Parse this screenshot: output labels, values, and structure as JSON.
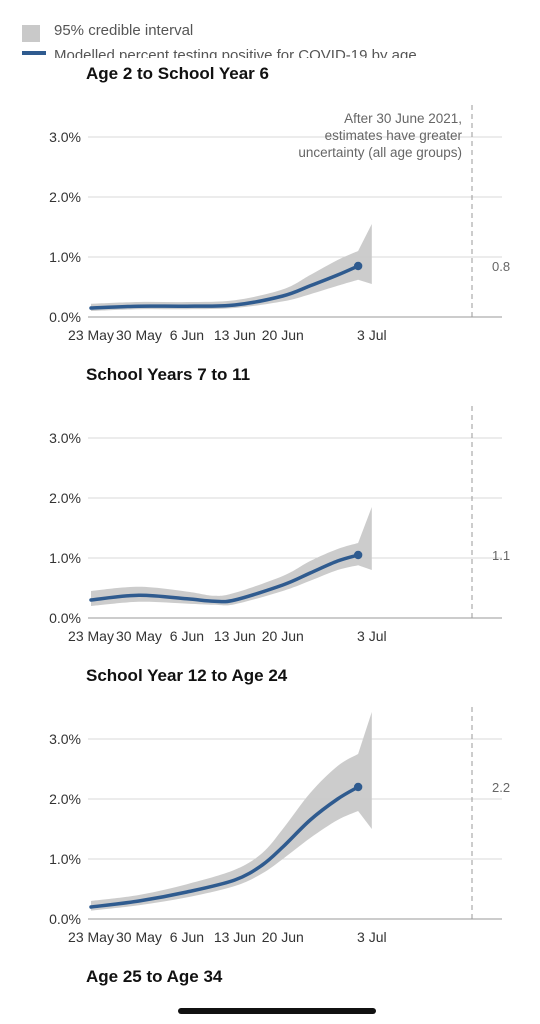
{
  "legend": {
    "ci_label": "95% credible interval",
    "line_label": "Modelled percent testing positive for COVID-19 by age"
  },
  "annotation": [
    "After 30 June 2021,",
    "estimates have greater",
    "uncertainty (all age groups)"
  ],
  "colors": {
    "line": "#2f5b8f",
    "band": "#c9c9c9",
    "grid": "#d9d9d9",
    "axis": "#555555"
  },
  "chart_data": [
    {
      "type": "line",
      "title": "Age 2 to School Year 6",
      "x_ticks": [
        "23 May",
        "30 May",
        "6 Jun",
        "13 Jun",
        "20 Jun",
        "3 Jul"
      ],
      "y_ticks": [
        "0.0%",
        "1.0%",
        "2.0%",
        "3.0%"
      ],
      "ylim": [
        0,
        3.0
      ],
      "end_label": "0.8",
      "series": [
        {
          "x": [
            "23 May",
            "30 May",
            "6 Jun",
            "13 Jun",
            "20 Jun",
            "24 Jun",
            "28 Jun",
            "1 Jul"
          ],
          "y": [
            0.15,
            0.18,
            0.18,
            0.2,
            0.35,
            0.52,
            0.7,
            0.85
          ],
          "lower": [
            0.1,
            0.13,
            0.13,
            0.15,
            0.26,
            0.38,
            0.52,
            0.62
          ],
          "upper": [
            0.22,
            0.25,
            0.25,
            0.28,
            0.46,
            0.7,
            0.95,
            1.1
          ]
        }
      ],
      "band_extension": {
        "x": [
          "1 Jul",
          "3 Jul"
        ],
        "lower": [
          0.62,
          0.55
        ],
        "upper": [
          1.1,
          1.55
        ]
      }
    },
    {
      "type": "line",
      "title": "School Years 7 to 11",
      "x_ticks": [
        "23 May",
        "30 May",
        "6 Jun",
        "13 Jun",
        "20 Jun",
        "3 Jul"
      ],
      "y_ticks": [
        "0.0%",
        "1.0%",
        "2.0%",
        "3.0%"
      ],
      "ylim": [
        0,
        3.0
      ],
      "end_label": "1.1",
      "series": [
        {
          "x": [
            "23 May",
            "30 May",
            "6 Jun",
            "10 Jun",
            "13 Jun",
            "20 Jun",
            "24 Jun",
            "28 Jun",
            "1 Jul"
          ],
          "y": [
            0.3,
            0.38,
            0.32,
            0.28,
            0.3,
            0.55,
            0.75,
            0.95,
            1.05
          ],
          "lower": [
            0.2,
            0.27,
            0.24,
            0.22,
            0.23,
            0.45,
            0.62,
            0.8,
            0.88
          ],
          "upper": [
            0.45,
            0.52,
            0.44,
            0.37,
            0.42,
            0.7,
            0.95,
            1.15,
            1.25
          ]
        }
      ],
      "band_extension": {
        "x": [
          "1 Jul",
          "3 Jul"
        ],
        "lower": [
          0.88,
          0.8
        ],
        "upper": [
          1.25,
          1.85
        ]
      }
    },
    {
      "type": "line",
      "title": "School Year 12 to Age 24",
      "x_ticks": [
        "23 May",
        "30 May",
        "6 Jun",
        "13 Jun",
        "20 Jun",
        "3 Jul"
      ],
      "y_ticks": [
        "0.0%",
        "1.0%",
        "2.0%",
        "3.0%"
      ],
      "ylim": [
        0,
        3.0
      ],
      "end_label": "2.2",
      "series": [
        {
          "x": [
            "23 May",
            "30 May",
            "6 Jun",
            "13 Jun",
            "17 Jun",
            "20 Jun",
            "24 Jun",
            "28 Jun",
            "1 Jul"
          ],
          "y": [
            0.2,
            0.3,
            0.45,
            0.65,
            0.9,
            1.2,
            1.65,
            2.0,
            2.2
          ],
          "lower": [
            0.14,
            0.23,
            0.36,
            0.55,
            0.76,
            1.0,
            1.35,
            1.65,
            1.8
          ],
          "upper": [
            0.3,
            0.4,
            0.58,
            0.82,
            1.1,
            1.5,
            2.1,
            2.55,
            2.75
          ]
        }
      ],
      "band_extension": {
        "x": [
          "1 Jul",
          "3 Jul"
        ],
        "lower": [
          1.8,
          1.5
        ],
        "upper": [
          2.75,
          3.45
        ]
      }
    }
  ],
  "next_panel_title": "Age 25 to Age 34"
}
